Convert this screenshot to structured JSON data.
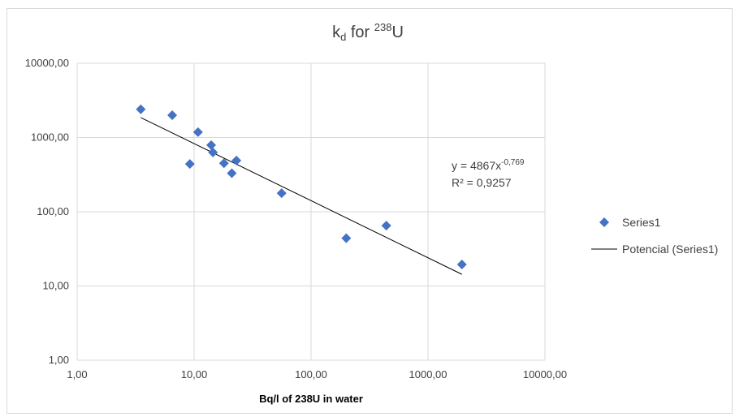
{
  "chart_data": {
    "type": "scatter",
    "title": {
      "main": "k",
      "sub": "d",
      "mid": " for ",
      "sup": "238",
      "tail": "U"
    },
    "xlabel": "Bq/l of 238U in water",
    "ylabel": "",
    "xscale": "log",
    "yscale": "log",
    "xlim": [
      1,
      10000
    ],
    "ylim": [
      1,
      10000
    ],
    "x_ticks": [
      1,
      10,
      100,
      1000,
      10000
    ],
    "y_ticks": [
      1,
      10,
      100,
      1000,
      10000
    ],
    "x_tick_labels": [
      "1,00",
      "10,00",
      "100,00",
      "1000,00",
      "10000,00"
    ],
    "y_tick_labels": [
      "1,00",
      "10,00",
      "100,00",
      "1000,00",
      "10000,00"
    ],
    "grid": true,
    "legend_position": "right",
    "series": [
      {
        "name": "Series1",
        "marker": "diamond",
        "color": "#4472c4",
        "points": [
          {
            "x": 3.5,
            "y": 2400
          },
          {
            "x": 6.5,
            "y": 2000
          },
          {
            "x": 9.2,
            "y": 440
          },
          {
            "x": 10.8,
            "y": 1180
          },
          {
            "x": 14.0,
            "y": 790
          },
          {
            "x": 14.5,
            "y": 630
          },
          {
            "x": 18.0,
            "y": 450
          },
          {
            "x": 21.0,
            "y": 330
          },
          {
            "x": 23.0,
            "y": 490
          },
          {
            "x": 56.0,
            "y": 178
          },
          {
            "x": 200.0,
            "y": 44
          },
          {
            "x": 440.0,
            "y": 65
          },
          {
            "x": 1950.0,
            "y": 19.5
          }
        ]
      }
    ],
    "trendline": {
      "name": "Potencial (Series1)",
      "type": "power",
      "coefficient": 4867,
      "exponent": -0.769,
      "x_range": [
        3.5,
        1950
      ],
      "color": "#000000",
      "equation_parts": {
        "base": "y = 4867x",
        "exp": "-0,769"
      },
      "r_squared_label": "R² = 0,9257"
    }
  }
}
